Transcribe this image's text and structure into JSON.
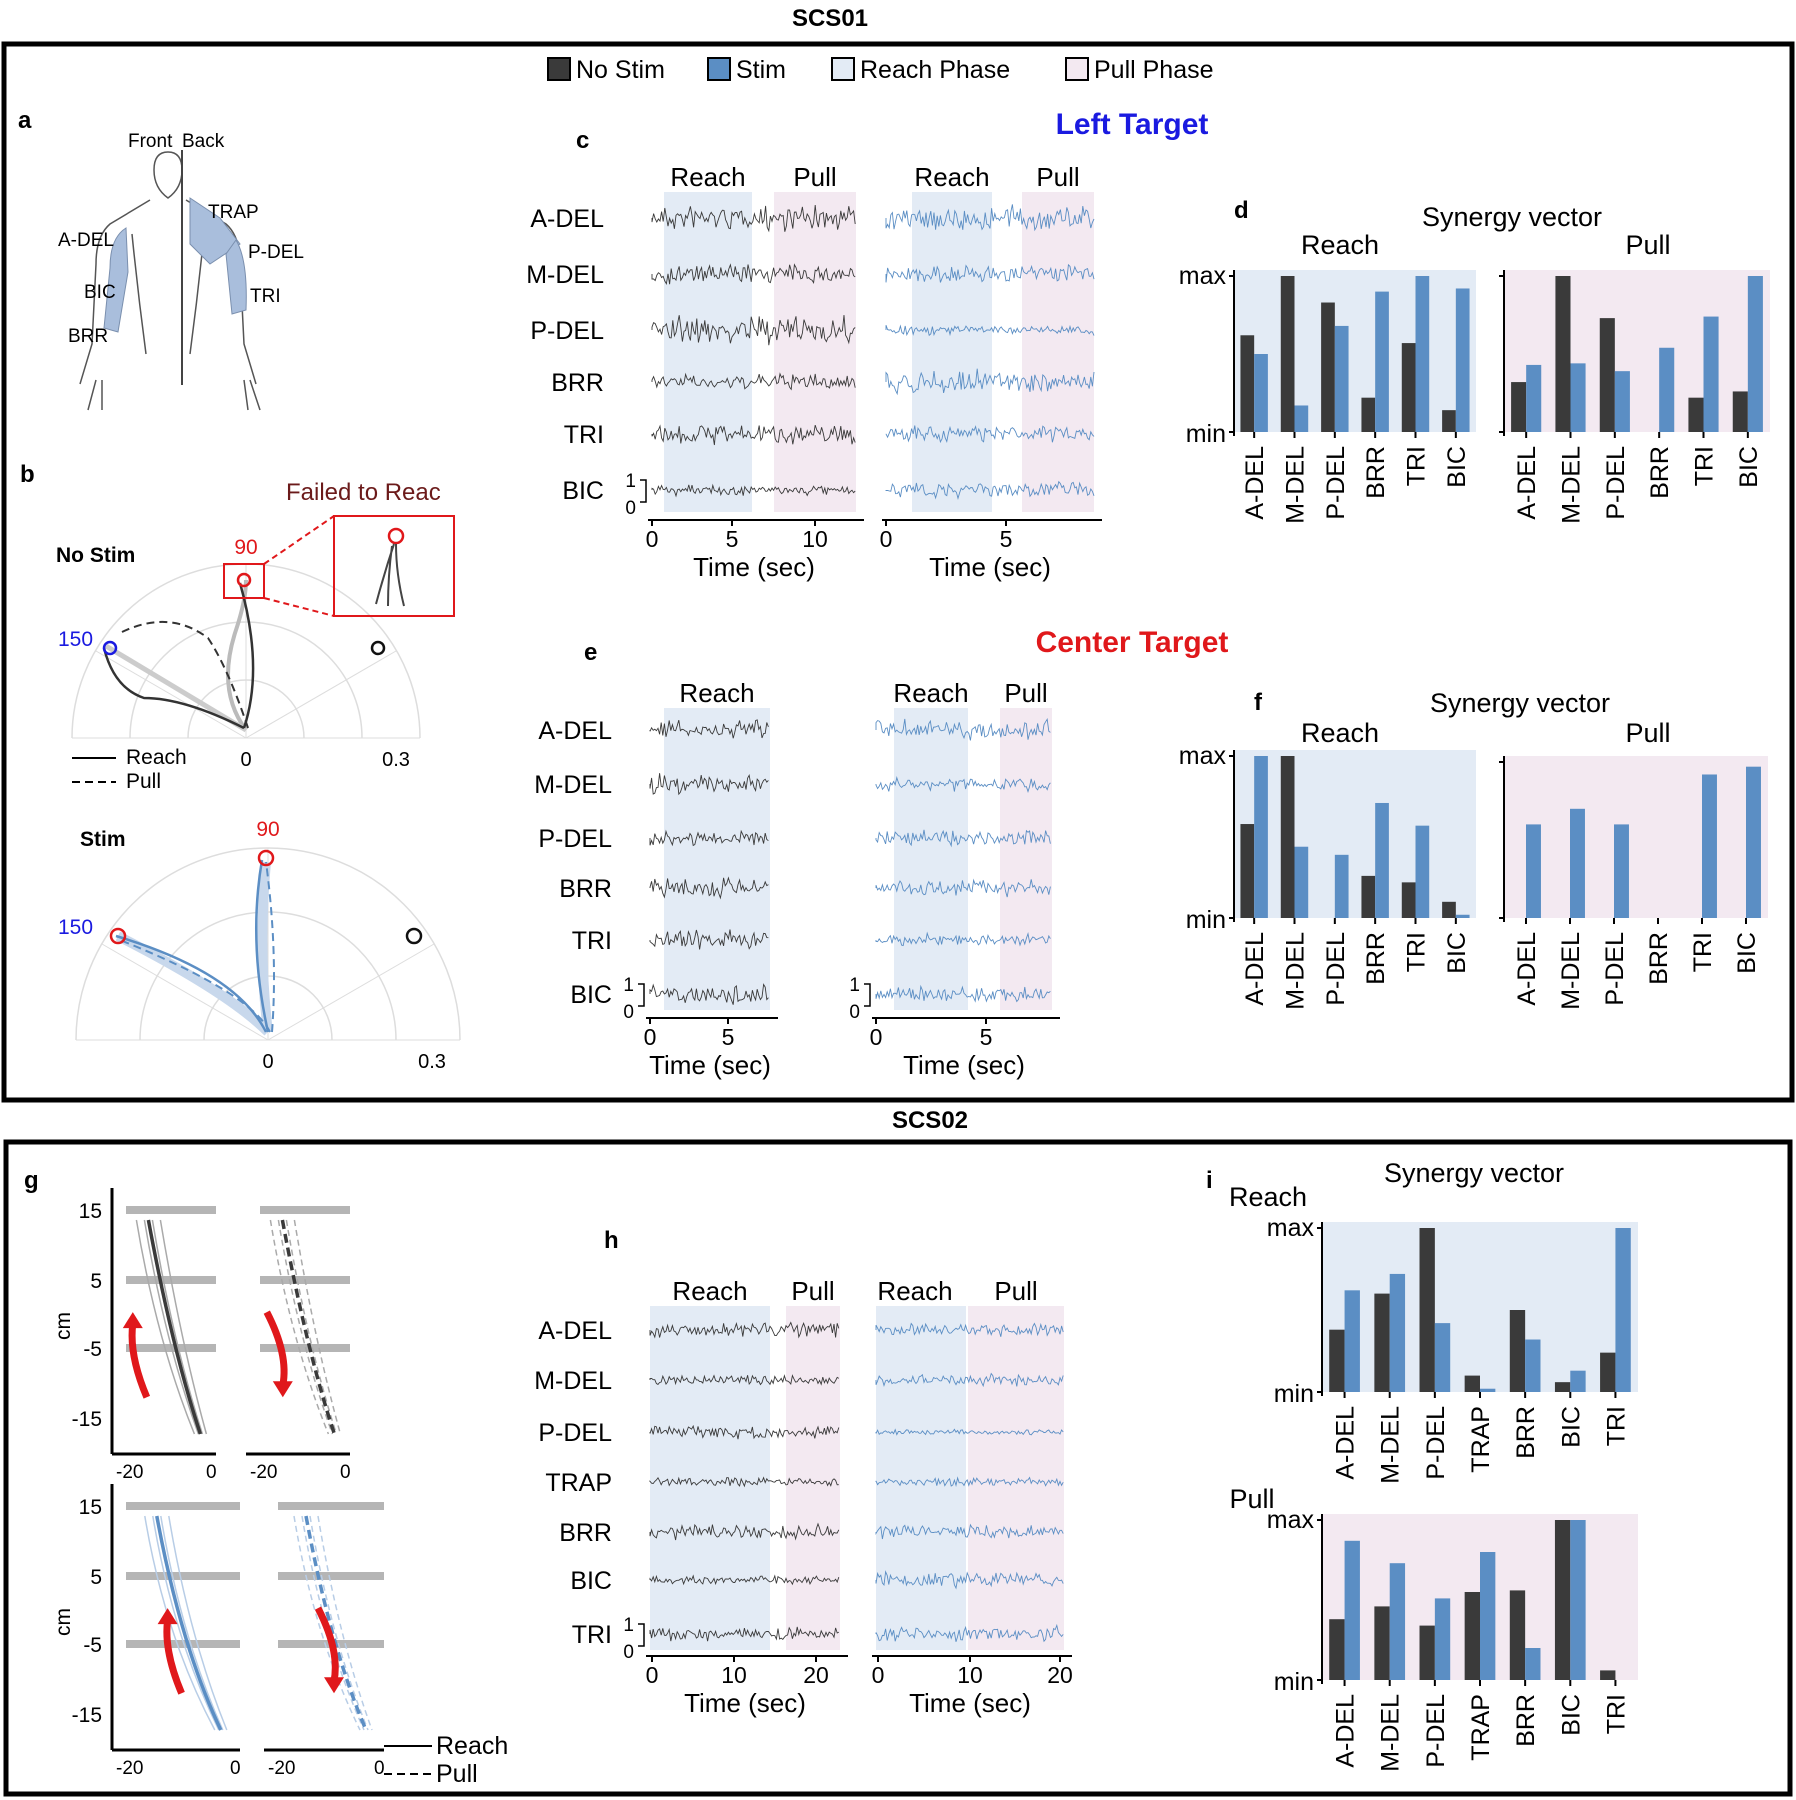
{
  "title_top": "SCS01",
  "title_bottom": "SCS02",
  "legend": [
    {
      "label": "No Stim",
      "color": "#3a3a3a"
    },
    {
      "label": "Stim",
      "color": "#5b8ec4"
    },
    {
      "label": "Reach Phase",
      "color": "#e3ebf5"
    },
    {
      "label": "Pull Phase",
      "color": "#f3e9f1"
    }
  ],
  "colors": {
    "nostim": "#3a3a3a",
    "stim": "#5b8ec4",
    "reach_bg": "#e3ebf5",
    "pull_bg": "#f3e9f1",
    "red": "#e0181b",
    "blue": "#1a1ae0"
  },
  "panel_labels": {
    "a": "a",
    "b": "b",
    "c": "c",
    "d": "d",
    "e": "e",
    "f": "f",
    "g": "g",
    "h": "h",
    "i": "i"
  },
  "panel_a": {
    "front": "Front",
    "back": "Back",
    "muscles": [
      "TRAP",
      "A-DEL",
      "P-DEL",
      "BIC",
      "TRI",
      "BRR"
    ]
  },
  "panel_b": {
    "failed_label": "Failed to Reac",
    "nostim_label": "No Stim",
    "stim_label": "Stim",
    "angle_90": "90",
    "angle_150": "150",
    "tick_0": "0",
    "tick_03": "0.3",
    "reach_legend": "Reach",
    "pull_legend": "Pull"
  },
  "left_target_title": "Left Target",
  "center_target_title": "Center Target",
  "emg_muscles_scs01": [
    "A-DEL",
    "M-DEL",
    "P-DEL",
    "BRR",
    "TRI",
    "BIC"
  ],
  "emg_muscles_scs02": [
    "A-DEL",
    "M-DEL",
    "P-DEL",
    "TRAP",
    "BRR",
    "BIC",
    "TRI"
  ],
  "phase_labels": {
    "reach": "Reach",
    "pull": "Pull"
  },
  "time_label": "Time (sec)",
  "scale_1": "1",
  "scale_0": "0",
  "panel_c": {
    "nostim_ticks": [
      "0",
      "5",
      "10"
    ],
    "stim_ticks": [
      "0",
      "5"
    ]
  },
  "panel_e": {
    "nostim_ticks": [
      "0",
      "5"
    ],
    "stim_ticks": [
      "0",
      "5"
    ]
  },
  "panel_h": {
    "nostim_ticks": [
      "0",
      "10",
      "20"
    ],
    "stim_ticks": [
      "0",
      "10",
      "20"
    ]
  },
  "synergy_title": "Synergy vector",
  "max_label": "max",
  "min_label": "min",
  "chart_data": [
    {
      "type": "bar",
      "panel": "d",
      "title": "Reach",
      "series_names": [
        "No Stim",
        "Stim"
      ],
      "categories": [
        "A-DEL",
        "M-DEL",
        "P-DEL",
        "BRR",
        "TRI",
        "BIC"
      ],
      "series": [
        {
          "name": "No Stim",
          "values": [
            0.62,
            1.0,
            0.83,
            0.22,
            0.57,
            0.14
          ]
        },
        {
          "name": "Stim",
          "values": [
            0.5,
            0.17,
            0.68,
            0.9,
            1.0,
            0.92
          ]
        }
      ],
      "ylim": [
        0,
        1
      ],
      "ylabel_max": "max",
      "ylabel_min": "min"
    },
    {
      "type": "bar",
      "panel": "d",
      "title": "Pull",
      "series_names": [
        "No Stim",
        "Stim"
      ],
      "categories": [
        "A-DEL",
        "M-DEL",
        "P-DEL",
        "BRR",
        "TRI",
        "BIC"
      ],
      "series": [
        {
          "name": "No Stim",
          "values": [
            0.32,
            1.0,
            0.73,
            0.0,
            0.22,
            0.26
          ]
        },
        {
          "name": "Stim",
          "values": [
            0.43,
            0.44,
            0.39,
            0.54,
            0.74,
            1.0
          ]
        }
      ],
      "ylim": [
        0,
        1
      ],
      "ylabel_max": "",
      "ylabel_min": ""
    },
    {
      "type": "bar",
      "panel": "f",
      "title": "Reach",
      "categories": [
        "A-DEL",
        "M-DEL",
        "P-DEL",
        "BRR",
        "TRI",
        "BIC"
      ],
      "series": [
        {
          "name": "No Stim",
          "values": [
            0.58,
            1.0,
            0.0,
            0.26,
            0.22,
            0.1
          ]
        },
        {
          "name": "Stim",
          "values": [
            1.0,
            0.44,
            0.39,
            0.71,
            0.57,
            0.02
          ]
        }
      ],
      "ylim": [
        0,
        1
      ],
      "ylabel_max": "max",
      "ylabel_min": "min"
    },
    {
      "type": "bar",
      "panel": "f",
      "title": "Pull",
      "categories": [
        "A-DEL",
        "M-DEL",
        "P-DEL",
        "BRR",
        "TRI",
        "BIC"
      ],
      "series": [
        {
          "name": "No Stim",
          "values": [
            0,
            0,
            0,
            0,
            0,
            0
          ]
        },
        {
          "name": "Stim",
          "values": [
            0.6,
            0.7,
            0.6,
            0.0,
            0.92,
            0.97
          ]
        }
      ],
      "ylim": [
        0,
        1
      ],
      "ylabel_max": "",
      "ylabel_min": ""
    },
    {
      "type": "bar",
      "panel": "i",
      "title": "Reach",
      "categories": [
        "A-DEL",
        "M-DEL",
        "P-DEL",
        "TRAP",
        "BRR",
        "BIC",
        "TRI"
      ],
      "series": [
        {
          "name": "No Stim",
          "values": [
            0.38,
            0.6,
            1.0,
            0.1,
            0.5,
            0.06,
            0.24
          ]
        },
        {
          "name": "Stim",
          "values": [
            0.62,
            0.72,
            0.42,
            0.02,
            0.32,
            0.13,
            1.0
          ]
        }
      ],
      "ylim": [
        0,
        1
      ],
      "ylabel_max": "max",
      "ylabel_min": "min"
    },
    {
      "type": "bar",
      "panel": "i",
      "title": "Pull",
      "categories": [
        "A-DEL",
        "M-DEL",
        "P-DEL",
        "TRAP",
        "BRR",
        "BIC",
        "TRI"
      ],
      "series": [
        {
          "name": "No Stim",
          "values": [
            0.38,
            0.46,
            0.34,
            0.55,
            0.56,
            1.0,
            0.06
          ]
        },
        {
          "name": "Stim",
          "values": [
            0.87,
            0.73,
            0.51,
            0.8,
            0.2,
            1.0,
            0.0
          ]
        }
      ],
      "ylim": [
        0,
        1
      ],
      "ylabel_max": "max",
      "ylabel_min": "min"
    }
  ],
  "panel_g": {
    "ylabel": "cm",
    "yticks": [
      "15",
      "5",
      "-5",
      "-15"
    ],
    "xticks": [
      "-20",
      "0"
    ],
    "reach_legend": "Reach",
    "pull_legend": "Pull"
  }
}
